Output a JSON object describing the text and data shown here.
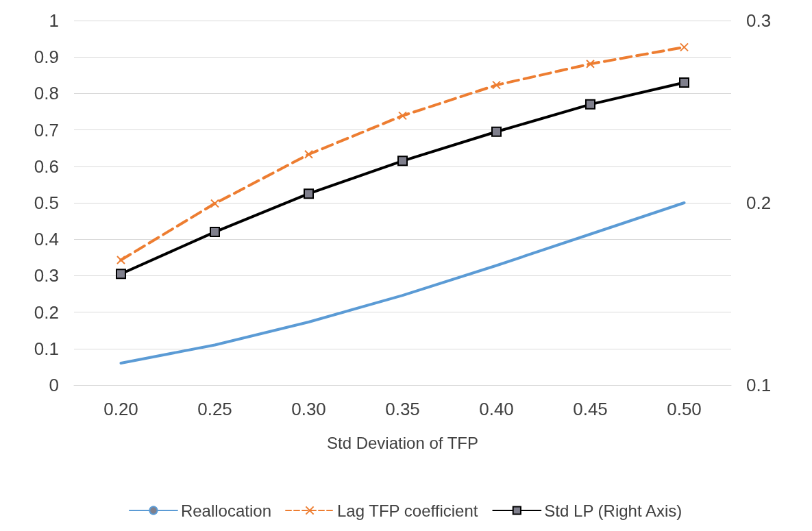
{
  "chart_data": {
    "type": "line",
    "xlabel": "Std Deviation of TFP",
    "categories": [
      "0.20",
      "0.25",
      "0.30",
      "0.35",
      "0.40",
      "0.45",
      "0.50"
    ],
    "series": [
      {
        "name": "Reallocation",
        "color": "#5b9bd5",
        "marker": "none",
        "line_style": "solid",
        "values": [
          0.06,
          0.11,
          0.173,
          0.246,
          0.328,
          0.414,
          0.5
        ]
      },
      {
        "name": "Lag TFP coefficient",
        "color": "#ed7d31",
        "marker": "cross",
        "line_style": "dashed",
        "values": [
          0.343,
          0.498,
          0.633,
          0.739,
          0.823,
          0.881,
          0.927
        ]
      },
      {
        "name": "Std LP (Right Axis)",
        "color": "#000000",
        "marker": "square",
        "line_style": "solid",
        "axis": "y2",
        "values": [
          0.161,
          0.184,
          0.205,
          0.223,
          0.239,
          0.254,
          0.266
        ]
      }
    ],
    "ylim": [
      0,
      1
    ],
    "yticks": [
      0,
      0.1,
      0.2,
      0.3,
      0.4,
      0.5,
      0.6,
      0.7,
      0.8,
      0.9,
      1
    ],
    "y2lim": [
      0.1,
      0.3
    ],
    "y2ticks": [
      0.1,
      0.2,
      0.3
    ],
    "grid": "y",
    "legend": "bottom"
  }
}
